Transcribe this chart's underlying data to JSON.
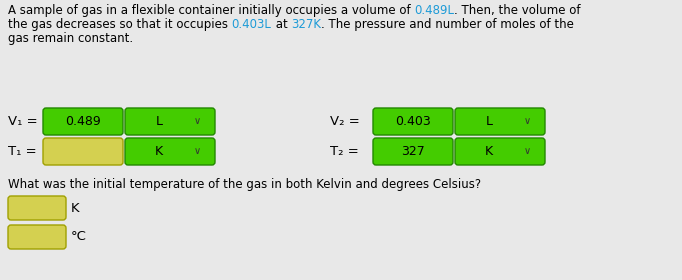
{
  "bg_color": "#e8e8e8",
  "highlight_color": "#1e9bd7",
  "green_color": "#44cc00",
  "green_border": "#228800",
  "yellow_color": "#d4d050",
  "yellow_border": "#a0a000",
  "row1_labels": [
    "V₁ =",
    "V₂ ="
  ],
  "row2_labels": [
    "T₁ =",
    "T₂ ="
  ],
  "row1_values": [
    "0.489",
    "0.403"
  ],
  "row2_values": [
    "",
    "327"
  ],
  "unit_L": "L",
  "unit_K": "K",
  "question_text": "What was the initial temperature of the gas in both Kelvin and degrees Celsius?",
  "answer_unit1": "K",
  "answer_unit2": "°C",
  "para_line1_parts": [
    [
      "A sample of gas in a flexible container initially occupies a volume of ",
      "black"
    ],
    [
      "0.489L",
      "#1e9bd7"
    ],
    [
      ". Then, the volume of",
      "black"
    ]
  ],
  "para_line2_parts": [
    [
      "the gas decreases so that it occupies ",
      "black"
    ],
    [
      "0.403L",
      "#1e9bd7"
    ],
    [
      " at ",
      "black"
    ],
    [
      "327K",
      "#1e9bd7"
    ],
    [
      ". The pressure and number of moles of the",
      "black"
    ]
  ],
  "para_line3_parts": [
    [
      "gas remain constant.",
      "black"
    ]
  ]
}
